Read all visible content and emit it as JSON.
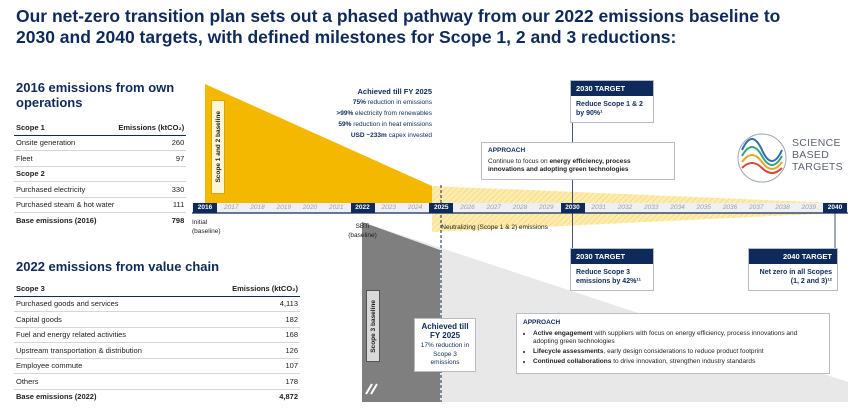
{
  "title": "Our net-zero transition plan sets out a phased pathway from our 2022 emissions baseline to 2030 and 2040 targets, with defined milestones for Scope 1, 2 and 3 reductions:",
  "own_operations": {
    "heading": "2016 emissions from own operations",
    "columns": [
      "Scope 1",
      "Emissions (ktCO₂)"
    ],
    "rows": [
      [
        "Onsite generation",
        "260"
      ],
      [
        "Fleet",
        "97"
      ],
      [
        "Scope 2"
      ],
      [
        "Purchased electricity",
        "330"
      ],
      [
        "Purchased steam & hot water",
        "111"
      ]
    ],
    "total": [
      "Base emissions (2016)",
      "798"
    ]
  },
  "value_chain": {
    "heading": "2022 emissions from value chain",
    "columns": [
      "Scope 3",
      "Emissions (ktCO₂)"
    ],
    "rows": [
      [
        "Purchased goods and services",
        "4,113"
      ],
      [
        "Capital goods",
        "182"
      ],
      [
        "Fuel and energy related activities",
        "168"
      ],
      [
        "Upstream transportation & distribution",
        "126"
      ],
      [
        "Employee commute",
        "107"
      ],
      [
        "Others",
        "178"
      ]
    ],
    "total": [
      "Base emissions (2022)",
      "4,872"
    ]
  },
  "timeline": {
    "years": [
      {
        "label": "2016",
        "highlight": true,
        "note": "Initial (baseline)"
      },
      {
        "label": "2017",
        "highlight": false
      },
      {
        "label": "2018",
        "highlight": false
      },
      {
        "label": "2019",
        "highlight": false
      },
      {
        "label": "2020",
        "highlight": false
      },
      {
        "label": "2021",
        "highlight": false
      },
      {
        "label": "2022",
        "highlight": true,
        "note": "SBTi (baseline)"
      },
      {
        "label": "2023",
        "highlight": false
      },
      {
        "label": "2024",
        "highlight": false
      },
      {
        "label": "2025",
        "highlight": true,
        "note": "Neutralizing (Scope 1 & 2) emissions"
      },
      {
        "label": "2026",
        "highlight": false
      },
      {
        "label": "2027",
        "highlight": false
      },
      {
        "label": "2028",
        "highlight": false
      },
      {
        "label": "2029",
        "highlight": false
      },
      {
        "label": "2030",
        "highlight": true
      },
      {
        "label": "2031",
        "highlight": false
      },
      {
        "label": "2032",
        "highlight": false
      },
      {
        "label": "2033",
        "highlight": false
      },
      {
        "label": "2034",
        "highlight": false
      },
      {
        "label": "2035",
        "highlight": false
      },
      {
        "label": "2036",
        "highlight": false
      },
      {
        "label": "2037",
        "highlight": false
      },
      {
        "label": "2038",
        "highlight": false
      },
      {
        "label": "2039",
        "highlight": false
      },
      {
        "label": "2040",
        "highlight": true
      }
    ]
  },
  "scope12_label": "Scope 1 and 2 baseline",
  "scope3_label": "Scope 3 baseline",
  "achieved_scope12": {
    "heading": "Achieved till FY 2025",
    "items": [
      {
        "bold": "75%",
        "text": "reduction in emissions"
      },
      {
        "bold": ">99%",
        "text": "electricity from renewables"
      },
      {
        "bold": "59%",
        "text": "reduction in heat emissions"
      },
      {
        "bold": "USD ~233m",
        "text": "capex invested"
      }
    ]
  },
  "target_2030_scope12": {
    "heading": "2030 TARGET",
    "text": "Reduce Scope 1 & 2 by 90%¹"
  },
  "approach_scope12": {
    "heading": "APPROACH",
    "text": "Continue to focus on",
    "bold": "energy efficiency, process innovations and adopting green technologies"
  },
  "logo": [
    "SCIENCE",
    "BASED",
    "TARGETS"
  ],
  "target_2030_scope3": {
    "heading": "2030 TARGET",
    "text": "Reduce Scope 3 emissions by 42%¹¹"
  },
  "target_2040": {
    "heading": "2040 TARGET",
    "text": "Net zero in all Scopes (1, 2 and 3)¹²"
  },
  "achieved_scope3": {
    "heading": "Achieved till FY 2025",
    "text": "17% reduction in Scope 3 emissions"
  },
  "approach_scope3": {
    "heading": "APPROACH",
    "items": [
      {
        "bold": "Active engagement",
        "text": "with suppliers with focus on energy efficiency, process innovations and adopting green technologies"
      },
      {
        "bold": "Lifecycle assessments",
        "text": ", early design considerations to reduce product footprint"
      },
      {
        "bold": "Continued collaborations",
        "text": "to drive innovation, strengthen industry standards"
      }
    ]
  }
}
